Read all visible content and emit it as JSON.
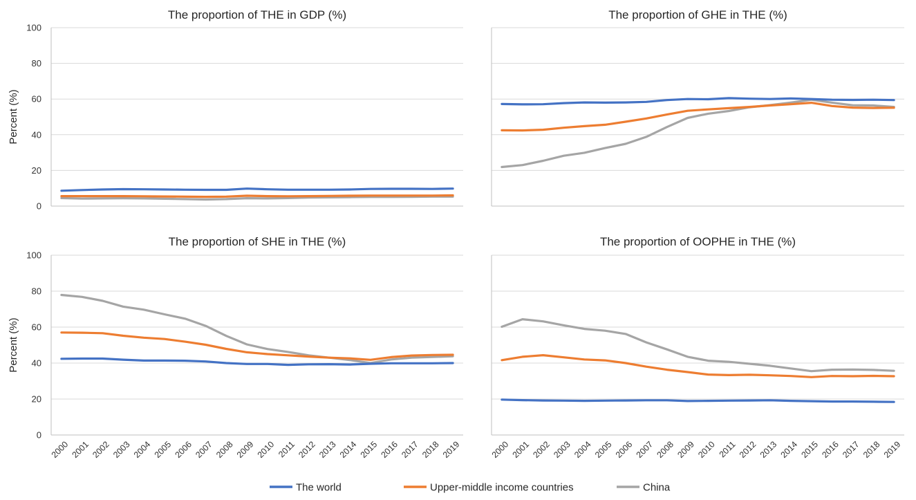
{
  "colors": {
    "world": "#4472C4",
    "umic": "#ED7D31",
    "china": "#A5A5A5",
    "grid": "#D9D9D9",
    "axis": "#BFBFBF"
  },
  "legend": [
    {
      "name": "The world",
      "color": "#4472C4"
    },
    {
      "name": "Upper-middle income countries",
      "color": "#ED7D31"
    },
    {
      "name": "China",
      "color": "#A5A5A5"
    }
  ],
  "chart_data": [
    {
      "type": "line",
      "title": "The proportion of THE in GDP (%)",
      "ylabel": "Percent (%)",
      "ylim": [
        0,
        100
      ],
      "yticks": [
        "0",
        "20",
        "40",
        "60",
        "80",
        "100"
      ],
      "x": [
        "2000",
        "2001",
        "2002",
        "2003",
        "2004",
        "2005",
        "2006",
        "2007",
        "2008",
        "2009",
        "2010",
        "2011",
        "2012",
        "2013",
        "2014",
        "2015",
        "2016",
        "2017",
        "2018",
        "2019"
      ],
      "series": [
        {
          "name": "The world",
          "values": [
            8.6,
            9.0,
            9.3,
            9.5,
            9.4,
            9.3,
            9.2,
            9.1,
            9.1,
            9.8,
            9.4,
            9.2,
            9.2,
            9.2,
            9.3,
            9.6,
            9.7,
            9.7,
            9.6,
            9.8
          ]
        },
        {
          "name": "Upper-middle income countries",
          "values": [
            5.6,
            5.6,
            5.6,
            5.6,
            5.5,
            5.4,
            5.3,
            5.2,
            5.3,
            5.8,
            5.6,
            5.5,
            5.6,
            5.7,
            5.8,
            5.9,
            5.9,
            5.9,
            5.9,
            6.0
          ]
        },
        {
          "name": "China",
          "values": [
            4.5,
            4.2,
            4.3,
            4.4,
            4.3,
            4.1,
            3.9,
            3.7,
            3.9,
            4.4,
            4.3,
            4.5,
            4.8,
            4.9,
            5.0,
            5.1,
            5.1,
            5.2,
            5.3,
            5.3
          ]
        }
      ]
    },
    {
      "type": "line",
      "title": "The proportion of GHE in THE (%)",
      "ylabel": "",
      "ylim": [
        0,
        100
      ],
      "yticks": [],
      "x": [
        "2000",
        "2001",
        "2002",
        "2003",
        "2004",
        "2005",
        "2006",
        "2007",
        "2008",
        "2009",
        "2010",
        "2011",
        "2012",
        "2013",
        "2014",
        "2015",
        "2016",
        "2017",
        "2018",
        "2019"
      ],
      "series": [
        {
          "name": "The world",
          "values": [
            57.2,
            57.0,
            57.1,
            57.7,
            58.1,
            58.0,
            58.1,
            58.4,
            59.4,
            60.0,
            59.9,
            60.5,
            60.2,
            60.0,
            60.3,
            60.0,
            59.6,
            59.5,
            59.6,
            59.4
          ]
        },
        {
          "name": "Upper-middle income countries",
          "values": [
            42.5,
            42.4,
            42.8,
            43.9,
            44.8,
            45.6,
            47.3,
            49.1,
            51.3,
            53.4,
            54.2,
            54.9,
            55.6,
            56.4,
            57.1,
            57.9,
            56.1,
            55.2,
            55.0,
            55.1
          ]
        },
        {
          "name": "China",
          "values": [
            21.9,
            23.0,
            25.4,
            28.2,
            29.9,
            32.5,
            34.9,
            38.8,
            44.3,
            49.4,
            51.8,
            53.3,
            55.4,
            56.6,
            58.0,
            59.6,
            58.0,
            56.5,
            56.4,
            55.6
          ]
        }
      ]
    },
    {
      "type": "line",
      "title": "The proportion of SHE in THE (%)",
      "ylabel": "Percent (%)",
      "ylim": [
        0,
        100
      ],
      "yticks": [
        "0",
        "20",
        "40",
        "60",
        "80",
        "100"
      ],
      "x": [
        "2000",
        "2001",
        "2002",
        "2003",
        "2004",
        "2005",
        "2006",
        "2007",
        "2008",
        "2009",
        "2010",
        "2011",
        "2012",
        "2013",
        "2014",
        "2015",
        "2016",
        "2017",
        "2018",
        "2019"
      ],
      "series": [
        {
          "name": "The world",
          "values": [
            42.4,
            42.5,
            42.5,
            41.9,
            41.4,
            41.4,
            41.3,
            40.9,
            40.0,
            39.5,
            39.5,
            39.0,
            39.3,
            39.4,
            39.2,
            39.6,
            39.9,
            39.9,
            39.9,
            40.0
          ]
        },
        {
          "name": "Upper-middle income countries",
          "values": [
            57.0,
            56.9,
            56.6,
            55.2,
            54.1,
            53.4,
            51.9,
            50.2,
            47.9,
            46.0,
            45.0,
            44.3,
            43.6,
            43.0,
            42.6,
            41.8,
            43.3,
            44.2,
            44.5,
            44.6
          ]
        },
        {
          "name": "China",
          "values": [
            77.9,
            76.8,
            74.6,
            71.4,
            69.7,
            67.1,
            64.7,
            60.7,
            55.1,
            50.4,
            47.8,
            46.2,
            44.3,
            43.0,
            41.7,
            40.0,
            42.0,
            43.0,
            43.4,
            43.8
          ]
        }
      ]
    },
    {
      "type": "line",
      "title": "The proportion of OOPHE in THE (%)",
      "ylabel": "",
      "ylim": [
        0,
        100
      ],
      "yticks": [],
      "x": [
        "2000",
        "2001",
        "2002",
        "2003",
        "2004",
        "2005",
        "2006",
        "2007",
        "2008",
        "2009",
        "2010",
        "2011",
        "2012",
        "2013",
        "2014",
        "2015",
        "2016",
        "2017",
        "2018",
        "2019"
      ],
      "series": [
        {
          "name": "The world",
          "values": [
            19.7,
            19.4,
            19.2,
            19.1,
            19.0,
            19.1,
            19.2,
            19.3,
            19.3,
            18.9,
            19.0,
            19.1,
            19.2,
            19.3,
            19.0,
            18.8,
            18.6,
            18.6,
            18.5,
            18.4
          ]
        },
        {
          "name": "Upper-middle income countries",
          "values": [
            41.6,
            43.5,
            44.4,
            43.2,
            42.0,
            41.5,
            40.0,
            38.0,
            36.3,
            35.0,
            33.6,
            33.3,
            33.5,
            33.2,
            32.8,
            32.2,
            32.8,
            32.7,
            32.9,
            32.7
          ]
        },
        {
          "name": "China",
          "values": [
            60.2,
            64.4,
            63.2,
            61.0,
            59.0,
            58.0,
            56.2,
            51.5,
            47.6,
            43.5,
            41.3,
            40.7,
            39.6,
            38.5,
            37.0,
            35.5,
            36.3,
            36.4,
            36.2,
            35.7
          ]
        }
      ]
    }
  ]
}
